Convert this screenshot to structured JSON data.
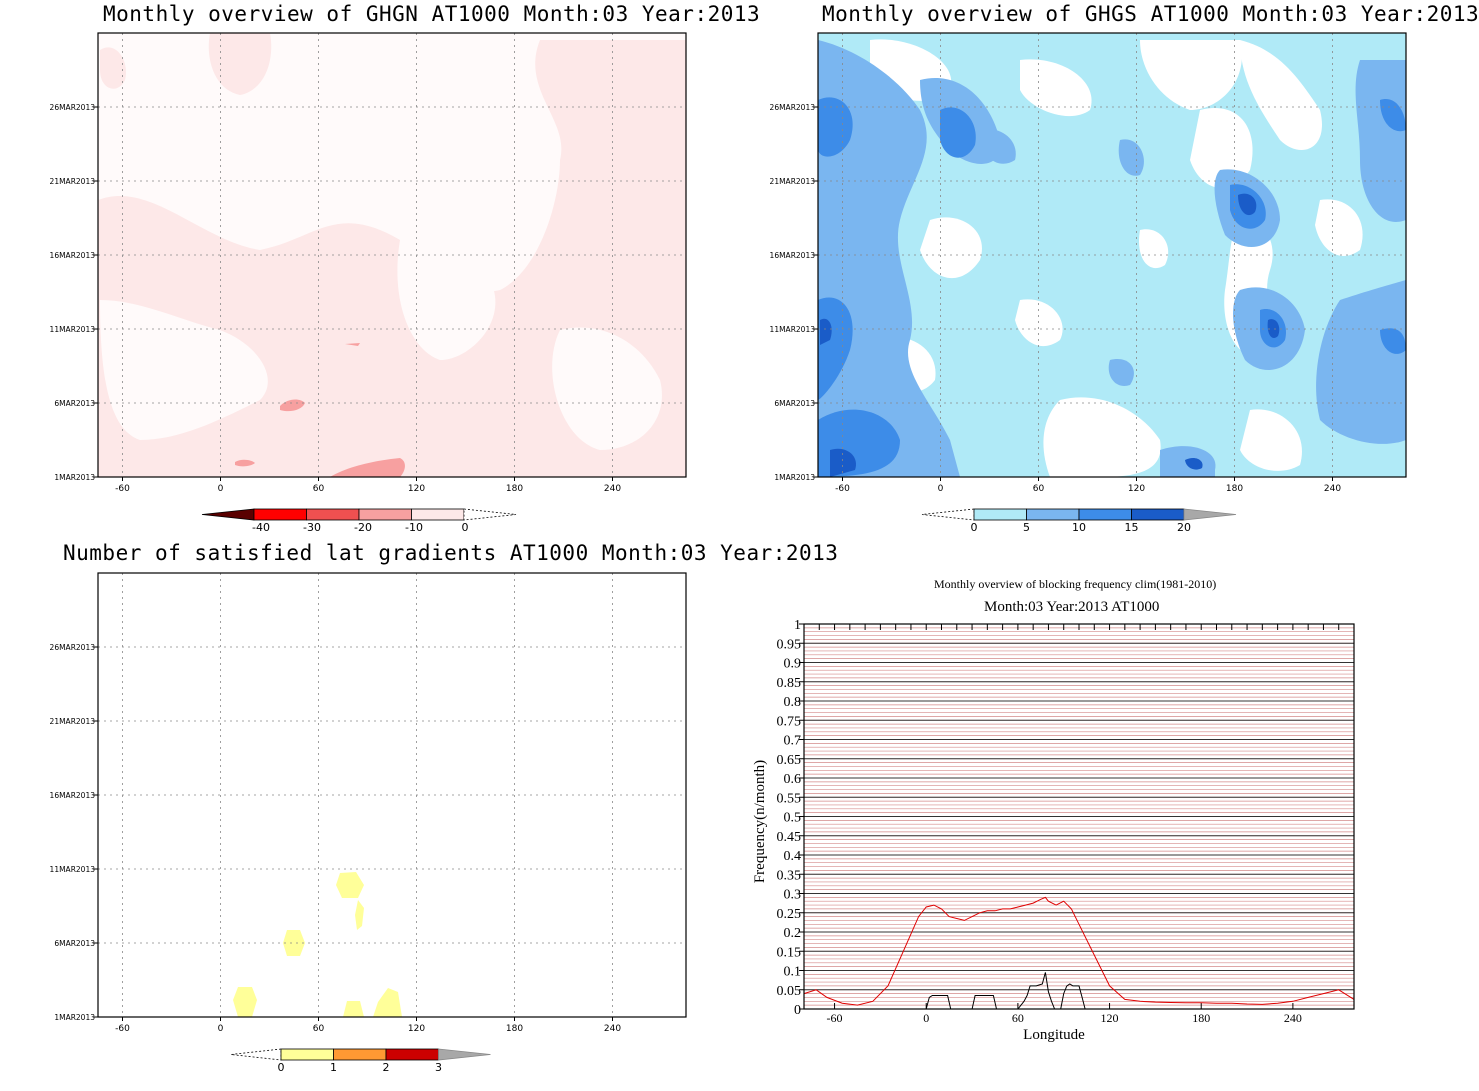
{
  "panels": {
    "ghgn": {
      "title": "Monthly overview of GHGN AT1000 Month:03 Year:2013",
      "y_ticks": [
        "1MAR2013",
        "6MAR2013",
        "11MAR2013",
        "16MAR2013",
        "21MAR2013",
        "26MAR2013"
      ],
      "x_ticks": [
        "-60",
        "0",
        "60",
        "120",
        "180",
        "240"
      ],
      "colorbar": {
        "labels": [
          "-40",
          "-30",
          "-20",
          "-10",
          "0"
        ],
        "colors": [
          "#5a0000",
          "#ff0000",
          "#ef5050",
          "#f7a0a0",
          "#fde8e8"
        ]
      },
      "fill_color": "#fde8e8",
      "blob_color": "#f7a0a0"
    },
    "ghgs": {
      "title": "Monthly overview of GHGS AT1000 Month:03 Year:2013",
      "y_ticks": [
        "1MAR2013",
        "6MAR2013",
        "11MAR2013",
        "16MAR2013",
        "21MAR2013",
        "26MAR2013"
      ],
      "x_ticks": [
        "-60",
        "0",
        "60",
        "120",
        "180",
        "240"
      ],
      "colorbar": {
        "labels": [
          "0",
          "5",
          "10",
          "15",
          "20"
        ],
        "colors": [
          "#b0eaf7",
          "#7ab6f0",
          "#3d8ce8",
          "#1a5cc8",
          "#a8a8a8"
        ]
      }
    },
    "gradients": {
      "title": "Number of satisfied lat gradients AT1000 Month:03 Year:2013",
      "y_ticks": [
        "1MAR2013",
        "6MAR2013",
        "11MAR2013",
        "16MAR2013",
        "21MAR2013",
        "26MAR2013"
      ],
      "x_ticks": [
        "-60",
        "0",
        "60",
        "120",
        "180",
        "240"
      ],
      "colorbar": {
        "labels": [
          "0",
          "1",
          "2",
          "3"
        ],
        "colors": [
          "#ffff99",
          "#ff9933",
          "#cc0000",
          "#a8a8a8"
        ]
      },
      "blob_color": "#ffff99"
    },
    "blocking": {
      "suptitle": "Monthly overview of blocking frequency clim(1981-2010)",
      "title": "Month:03 Year:2013  AT1000"
    }
  },
  "chart_data": [
    {
      "type": "heatmap",
      "title": "Monthly overview of GHGN AT1000 Month:03 Year:2013",
      "x_range": [
        -75,
        285
      ],
      "y_range": [
        "1MAR2013",
        "31MAR2013"
      ],
      "contour_levels": [
        -40,
        -30,
        -20,
        -10,
        0
      ],
      "dominant_level": "-10 to 0"
    },
    {
      "type": "heatmap",
      "title": "Monthly overview of GHGS AT1000 Month:03 Year:2013",
      "x_range": [
        -75,
        285
      ],
      "y_range": [
        "1MAR2013",
        "31MAR2013"
      ],
      "contour_levels": [
        0,
        5,
        10,
        15,
        20
      ]
    },
    {
      "type": "heatmap",
      "title": "Number of satisfied lat gradients AT1000 Month:03 Year:2013",
      "x_range": [
        -75,
        285
      ],
      "y_range": [
        "1MAR2013",
        "31MAR2013"
      ],
      "contour_levels": [
        0,
        1,
        2,
        3
      ]
    },
    {
      "type": "line",
      "title": "Month:03 Year:2013  AT1000",
      "subtitle": "Monthly overview of blocking frequency clim(1981-2010)",
      "xlabel": "Longitude",
      "ylabel": "Frequency(n/month)",
      "xlim": [
        -80,
        280
      ],
      "ylim": [
        0,
        1
      ],
      "x_ticks": [
        -60,
        0,
        60,
        120,
        180,
        240
      ],
      "y_ticks": [
        "0",
        "0.05",
        "0.1",
        "0.15",
        "0.2",
        "0.25",
        "0.3",
        "0.35",
        "0.4",
        "0.45",
        "0.5",
        "0.55",
        "0.6",
        "0.65",
        "0.7",
        "0.75",
        "0.8",
        "0.85",
        "0.9",
        "0.95",
        "1"
      ],
      "series": [
        {
          "color": "#e00000",
          "x": [
            -80,
            -72,
            -65,
            -55,
            -45,
            -35,
            -25,
            -15,
            -5,
            0,
            5,
            10,
            15,
            20,
            25,
            30,
            35,
            40,
            45,
            50,
            55,
            60,
            65,
            70,
            75,
            78,
            80,
            85,
            90,
            95,
            100,
            110,
            120,
            130,
            140,
            150,
            160,
            170,
            180,
            190,
            200,
            210,
            220,
            230,
            240,
            250,
            260,
            270,
            280
          ],
          "y": [
            0.04,
            0.05,
            0.03,
            0.015,
            0.01,
            0.02,
            0.06,
            0.15,
            0.24,
            0.265,
            0.27,
            0.26,
            0.24,
            0.235,
            0.23,
            0.24,
            0.25,
            0.255,
            0.255,
            0.26,
            0.26,
            0.265,
            0.27,
            0.275,
            0.285,
            0.29,
            0.28,
            0.27,
            0.28,
            0.26,
            0.22,
            0.14,
            0.06,
            0.025,
            0.02,
            0.018,
            0.017,
            0.016,
            0.016,
            0.015,
            0.015,
            0.013,
            0.012,
            0.015,
            0.02,
            0.03,
            0.04,
            0.05,
            0.025
          ]
        },
        {
          "color": "#000000",
          "x": [
            -80,
            0,
            2,
            4,
            14,
            16,
            30,
            32,
            34,
            44,
            46,
            60,
            64,
            66,
            68,
            72,
            76,
            78,
            80,
            82,
            84,
            88,
            90,
            92,
            94,
            96,
            100,
            102,
            104,
            280
          ],
          "y": [
            0,
            0,
            0.03,
            0.035,
            0.035,
            0,
            0,
            0.035,
            0.035,
            0.035,
            0,
            0,
            0.02,
            0.035,
            0.06,
            0.06,
            0.065,
            0.095,
            0.045,
            0.02,
            0,
            0,
            0.04,
            0.06,
            0.065,
            0.06,
            0.06,
            0.03,
            0,
            0
          ]
        }
      ]
    }
  ]
}
